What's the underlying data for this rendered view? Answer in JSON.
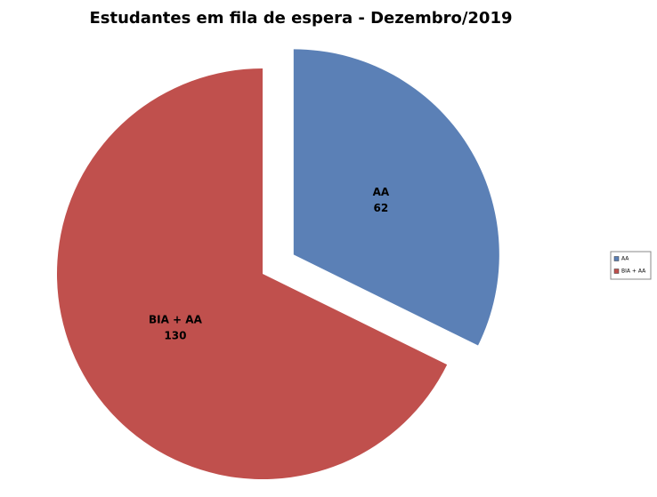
{
  "chart_data": {
    "type": "pie",
    "title": "Estudantes em fila de espera - Dezembro/2019",
    "categories": [
      "AA",
      "BIA + AA"
    ],
    "values": [
      62,
      130
    ],
    "colors": [
      "#5b80b6",
      "#c0504d"
    ],
    "legend": "right"
  }
}
